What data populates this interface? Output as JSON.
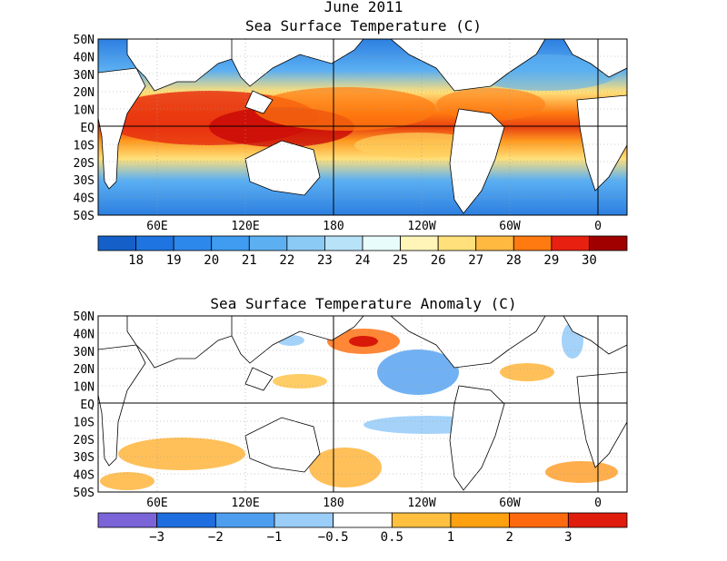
{
  "top_map": {
    "title_line1": "June 2011",
    "title_line2": "Sea Surface Temperature (C)",
    "lat_labels": [
      "50N",
      "40N",
      "30N",
      "20N",
      "10N",
      "EQ",
      "10S",
      "20S",
      "30S",
      "40S",
      "50S"
    ],
    "lon_labels": [
      "60E",
      "120E",
      "180",
      "120W",
      "60W",
      "0"
    ],
    "colorbar": {
      "colors": [
        "#1560c8",
        "#1e74e0",
        "#2d88ec",
        "#3f9cf0",
        "#5cb0f2",
        "#8ccaf6",
        "#b8e2f8",
        "#e8fcfc",
        "#fff5b8",
        "#ffe07a",
        "#ffb840",
        "#ff7a10",
        "#e82010",
        "#a00000"
      ],
      "labels": [
        "18",
        "19",
        "20",
        "21",
        "22",
        "23",
        "24",
        "25",
        "26",
        "27",
        "28",
        "29",
        "30"
      ]
    }
  },
  "bottom_map": {
    "title": "Sea Surface Temperature Anomaly (C)",
    "lat_labels": [
      "50N",
      "40N",
      "30N",
      "20N",
      "10N",
      "EQ",
      "10S",
      "20S",
      "30S",
      "40S",
      "50S"
    ],
    "lon_labels": [
      "60E",
      "120E",
      "180",
      "120W",
      "60W",
      "0"
    ],
    "colorbar": {
      "colors": [
        "#7a64d8",
        "#1e6ee0",
        "#4e9ef0",
        "#9acdf8",
        "#ffffff",
        "#ffc040",
        "#ffa010",
        "#ff6a10",
        "#e01c0c"
      ],
      "labels": [
        "−3",
        "−2",
        "−1",
        "−0.5",
        "0.5",
        "1",
        "2",
        "3"
      ]
    }
  }
}
